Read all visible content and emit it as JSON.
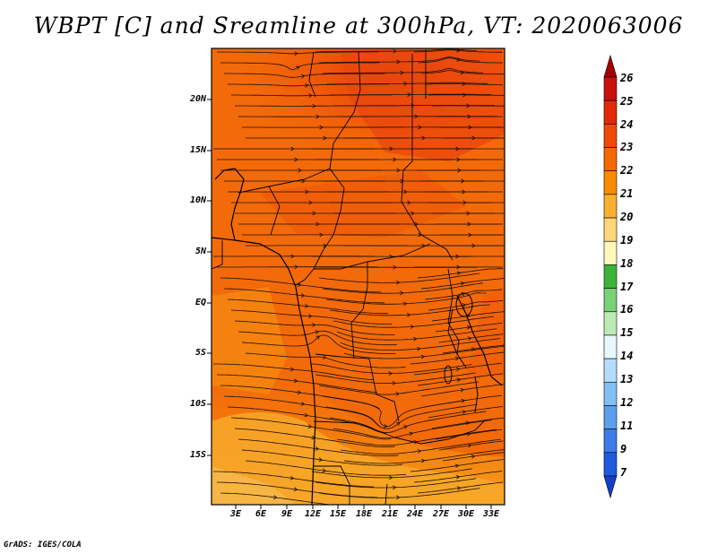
{
  "title": "WBPT [C] and Sreamline at 300hPa, VT: 2020063006",
  "credit": "GrADS: IGES/COLA",
  "map": {
    "lat_labels": [
      "20N",
      "15N",
      "10N",
      "5N",
      "EQ",
      "5S",
      "10S",
      "15S"
    ],
    "lon_labels": [
      "3E",
      "6E",
      "9E",
      "12E",
      "15E",
      "18E",
      "21E",
      "24E",
      "27E",
      "30E",
      "33E"
    ]
  },
  "colorbar": {
    "labels": [
      "26",
      "25",
      "24",
      "23",
      "22",
      "21",
      "20",
      "19",
      "18",
      "17",
      "16",
      "15",
      "14",
      "13",
      "12",
      "11",
      "9",
      "7"
    ],
    "colors": [
      "#a50000",
      "#c81010",
      "#e02a0a",
      "#f04a08",
      "#f46a00",
      "#f88c00",
      "#f8b030",
      "#fcd67a",
      "#fff7bc",
      "#3cb43c",
      "#78d278",
      "#bceab4",
      "#e6f8fc",
      "#b4dcfa",
      "#82c0f4",
      "#5aa0ee",
      "#3c7ce6",
      "#1e5adc",
      "#1440c8"
    ]
  }
}
